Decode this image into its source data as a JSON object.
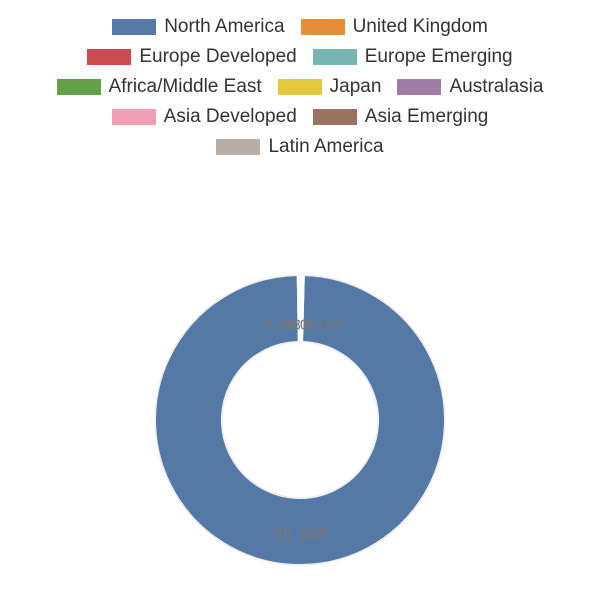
{
  "chart": {
    "type": "donut",
    "background_color": "#ffffff",
    "outer_radius": 145,
    "inner_radius": 78,
    "ring_stroke_color": "#ffffff",
    "ring_stroke_width": 2,
    "label_color": "#777777",
    "label_fontsize": 15,
    "big_label_fontsize": 18,
    "categories": [
      {
        "label": "North America",
        "value": 99.368,
        "color": "#5479a7"
      },
      {
        "label": "United Kingdom",
        "value": 0.088,
        "color": "#e78d36"
      },
      {
        "label": "Europe Developed",
        "value": 0.088,
        "color": "#cc4a51"
      },
      {
        "label": "Europe Emerging",
        "value": 0.07,
        "color": "#78b5b0"
      },
      {
        "label": "Africa/Middle East",
        "value": 0.07,
        "color": "#64a047"
      },
      {
        "label": "Japan",
        "value": 0.07,
        "color": "#e3c83f"
      },
      {
        "label": "Australasia",
        "value": 0.07,
        "color": "#a17ca9"
      },
      {
        "label": "Asia Developed",
        "value": 0.07,
        "color": "#f19fb6"
      },
      {
        "label": "Asia Emerging",
        "value": 0.07,
        "color": "#9a7460"
      },
      {
        "label": "Latin America",
        "value": 0.07,
        "color": "#b9aea6"
      }
    ],
    "visible_value_labels": [
      "99.368",
      "0.088",
      "0.07",
      "0.448"
    ],
    "legend": {
      "swatch_width": 44,
      "swatch_height": 16,
      "label_fontsize": 19,
      "label_color": "#333333"
    }
  }
}
